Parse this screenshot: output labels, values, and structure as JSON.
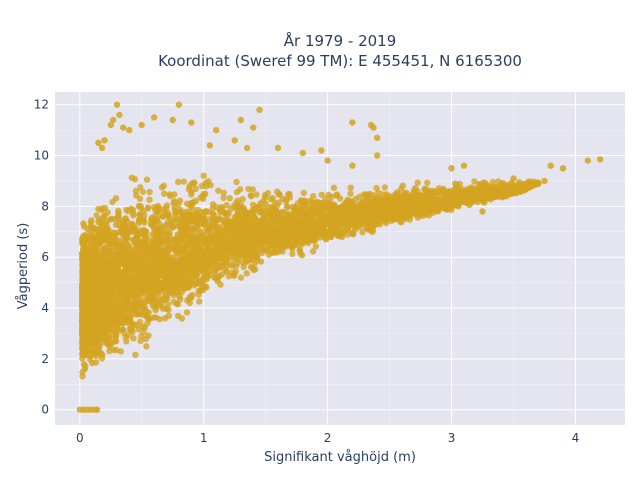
{
  "chart_data": {
    "type": "scatter",
    "title_line1": "År 1979 - 2019",
    "title_line2": "Koordinat (Sweref 99 TM): E 455451, N 6165300",
    "xlabel": "Signifikant våghöjd (m)",
    "ylabel": "Vågperiod (s)",
    "xlim": [
      -0.2,
      4.4
    ],
    "ylim": [
      -0.6,
      12.5
    ],
    "x_ticks": [
      0,
      1,
      2,
      3,
      4
    ],
    "y_ticks": [
      0,
      2,
      4,
      6,
      8,
      10,
      12
    ],
    "grid": true,
    "legend": "none",
    "marker_color": "#D4A421",
    "plot_background": "#E5E5EF",
    "envelope": {
      "description": "dense cloud of points",
      "upper": [
        [
          0.02,
          7.6
        ],
        [
          0.1,
          8.6
        ],
        [
          0.3,
          9.4
        ],
        [
          0.6,
          9.9
        ],
        [
          0.9,
          10.1
        ],
        [
          1.2,
          9.2
        ],
        [
          1.6,
          8.9
        ],
        [
          2.0,
          8.9
        ],
        [
          2.5,
          8.9
        ],
        [
          3.0,
          9.1
        ],
        [
          3.5,
          9.1
        ],
        [
          3.7,
          9.0
        ]
      ],
      "lower": [
        [
          0.02,
          1.0
        ],
        [
          0.15,
          1.1
        ],
        [
          0.3,
          1.6
        ],
        [
          0.6,
          2.4
        ],
        [
          0.9,
          3.6
        ],
        [
          1.2,
          4.7
        ],
        [
          1.5,
          5.5
        ],
        [
          2.0,
          6.3
        ],
        [
          2.5,
          7.1
        ],
        [
          3.0,
          7.8
        ],
        [
          3.5,
          8.4
        ],
        [
          3.7,
          8.9
        ]
      ],
      "center": [
        [
          0.02,
          4.2
        ],
        [
          0.15,
          4.6
        ],
        [
          0.3,
          5.0
        ],
        [
          0.6,
          5.6
        ],
        [
          0.9,
          6.2
        ],
        [
          1.2,
          6.7
        ],
        [
          1.5,
          7.0
        ],
        [
          2.0,
          7.4
        ],
        [
          2.5,
          7.8
        ],
        [
          3.0,
          8.2
        ],
        [
          3.5,
          8.6
        ],
        [
          3.7,
          8.9
        ]
      ]
    },
    "extra_points": [
      [
        0.0,
        0.0
      ],
      [
        0.03,
        0.0
      ],
      [
        0.06,
        0.0
      ],
      [
        0.09,
        0.0
      ],
      [
        0.12,
        0.0
      ],
      [
        0.14,
        0.0
      ],
      [
        0.3,
        12.0
      ],
      [
        0.32,
        11.6
      ],
      [
        0.27,
        11.4
      ],
      [
        0.25,
        11.2
      ],
      [
        0.35,
        11.1
      ],
      [
        0.4,
        11.0
      ],
      [
        0.5,
        11.2
      ],
      [
        0.6,
        11.5
      ],
      [
        0.8,
        12.0
      ],
      [
        0.75,
        11.4
      ],
      [
        0.9,
        11.3
      ],
      [
        1.1,
        11.0
      ],
      [
        1.3,
        11.4
      ],
      [
        1.45,
        11.8
      ],
      [
        1.4,
        11.1
      ],
      [
        2.2,
        11.3
      ],
      [
        2.35,
        11.2
      ],
      [
        2.37,
        11.1
      ],
      [
        2.4,
        10.7
      ],
      [
        1.8,
        10.1
      ],
      [
        1.95,
        10.2
      ],
      [
        2.0,
        9.8
      ],
      [
        2.2,
        9.6
      ],
      [
        2.4,
        10.0
      ],
      [
        0.15,
        10.5
      ],
      [
        0.18,
        10.3
      ],
      [
        0.2,
        10.6
      ],
      [
        1.05,
        10.4
      ],
      [
        1.25,
        10.6
      ],
      [
        1.35,
        10.3
      ],
      [
        1.6,
        10.3
      ],
      [
        3.8,
        9.6
      ],
      [
        3.9,
        9.5
      ],
      [
        4.1,
        9.8
      ],
      [
        4.2,
        9.85
      ],
      [
        3.75,
        9.0
      ],
      [
        3.3,
        8.5
      ],
      [
        3.4,
        8.6
      ],
      [
        3.5,
        9.1
      ],
      [
        3.25,
        7.8
      ],
      [
        3.1,
        9.6
      ],
      [
        3.0,
        9.5
      ]
    ]
  }
}
